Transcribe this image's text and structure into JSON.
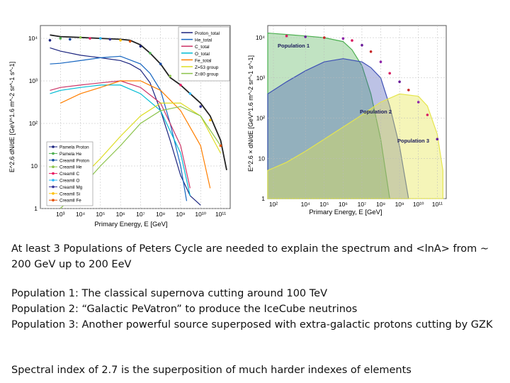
{
  "chart_data": [
    {
      "type": "line",
      "xlabel": "Primary Energy, E [GeV]",
      "ylabel": "E^2.6 dN/dE [GeV^1.6 m^-2 sr^-1 s^-1]",
      "xscale": "log",
      "yscale": "log",
      "xlim": [
        100,
        300000000000
      ],
      "ylim": [
        1,
        20000
      ],
      "x_ticks": [
        "10³",
        "10⁴",
        "10⁵",
        "10⁶",
        "10⁷",
        "10⁸",
        "10⁹",
        "10¹⁰",
        "10¹¹"
      ],
      "y_ticks": [
        "1",
        "10",
        "10²",
        "10³",
        "10⁴"
      ],
      "legend_models_position": "top-right",
      "legend_data_position": "bottom-left",
      "series": [
        {
          "name": "Proton_total",
          "color": "#1a237e",
          "x": [
            300,
            1000,
            10000,
            100000,
            1000000,
            3000000,
            10000000,
            30000000,
            100000000,
            300000000,
            1000000000,
            3000000000,
            10000000000
          ],
          "y": [
            6000,
            5000,
            4000,
            3500,
            3000,
            2500,
            1800,
            900,
            200,
            40,
            6,
            2,
            1.2
          ]
        },
        {
          "name": "He_total",
          "color": "#1565c0",
          "x": [
            300,
            1000,
            10000,
            100000,
            1000000,
            10000000,
            30000000,
            100000000,
            300000000,
            1000000000,
            2000000000
          ],
          "y": [
            2500,
            2600,
            3000,
            3500,
            3800,
            2500,
            1500,
            600,
            100,
            10,
            1.5
          ]
        },
        {
          "name": "C_total",
          "color": "#cc3366",
          "x": [
            300,
            1000,
            10000,
            100000,
            1000000,
            10000000,
            100000000,
            1000000000,
            3000000000
          ],
          "y": [
            600,
            700,
            800,
            900,
            1000,
            700,
            300,
            30,
            3
          ]
        },
        {
          "name": "O_total",
          "color": "#00bcd4",
          "x": [
            300,
            1000,
            10000,
            100000,
            1000000,
            10000000,
            100000000,
            1000000000,
            3000000000
          ],
          "y": [
            500,
            600,
            700,
            800,
            800,
            500,
            200,
            20,
            2
          ]
        },
        {
          "name": "Fe_total",
          "color": "#ff7f00",
          "x": [
            1000,
            10000,
            100000,
            1000000,
            10000000,
            100000000,
            1000000000,
            10000000000,
            30000000000
          ],
          "y": [
            300,
            500,
            700,
            1000,
            1000,
            600,
            200,
            30,
            3
          ]
        },
        {
          "name": "Z=53 group",
          "color": "#dddd22",
          "x": [
            1000,
            10000,
            100000,
            1000000,
            10000000,
            100000000,
            1000000000,
            10000000000,
            100000000000
          ],
          "y": [
            1.5,
            5,
            15,
            50,
            150,
            300,
            300,
            150,
            20
          ]
        },
        {
          "name": "Z=80 group",
          "color": "#8bc34a",
          "x": [
            1000,
            10000,
            100000,
            1000000,
            10000000,
            100000000,
            1000000000,
            10000000000,
            100000000000
          ],
          "y": [
            1,
            3,
            10,
            30,
            100,
            200,
            250,
            150,
            30
          ]
        },
        {
          "name": "Total",
          "color": "#222222",
          "x": [
            300,
            1000,
            10000,
            100000,
            1000000,
            3000000,
            10000000,
            30000000,
            100000000,
            300000000,
            1000000000,
            3000000000,
            10000000000,
            30000000000,
            100000000000,
            200000000000
          ],
          "y": [
            12000,
            11000,
            10500,
            10000,
            9500,
            9000,
            7000,
            4500,
            2500,
            1200,
            800,
            500,
            300,
            150,
            40,
            8
          ]
        }
      ],
      "data_legend": [
        {
          "name": "Pamela Proton",
          "color": "#1a237e"
        },
        {
          "name": "Pamela He",
          "color": "#4caf50"
        },
        {
          "name": "Creamll Proton",
          "color": "#0d47a1"
        },
        {
          "name": "Creamll He",
          "color": "#8bc34a"
        },
        {
          "name": "Creamll C",
          "color": "#e91e63"
        },
        {
          "name": "Creamll O",
          "color": "#29b6f6"
        },
        {
          "name": "Creamll Mg",
          "color": "#333399"
        },
        {
          "name": "Creamll Si",
          "color": "#ffc107"
        },
        {
          "name": "Creamll Fe",
          "color": "#e65100"
        }
      ],
      "data_points": [
        {
          "x": 300,
          "y": 9000
        },
        {
          "x": 1000,
          "y": 10000
        },
        {
          "x": 3000,
          "y": 9500
        },
        {
          "x": 10000,
          "y": 10500
        },
        {
          "x": 30000,
          "y": 10000
        },
        {
          "x": 100000,
          "y": 10000
        },
        {
          "x": 300000,
          "y": 9500
        },
        {
          "x": 1000000,
          "y": 9000
        },
        {
          "x": 3000000,
          "y": 8500
        },
        {
          "x": 10000000,
          "y": 6500
        },
        {
          "x": 30000000,
          "y": 4500
        },
        {
          "x": 100000000,
          "y": 2500
        },
        {
          "x": 300000000,
          "y": 1300
        },
        {
          "x": 1000000000,
          "y": 800
        },
        {
          "x": 3000000000,
          "y": 500
        },
        {
          "x": 10000000000,
          "y": 250
        },
        {
          "x": 30000000000,
          "y": 120
        },
        {
          "x": 100000000000,
          "y": 30
        }
      ]
    },
    {
      "type": "area",
      "xlabel": "Primary Energy, E [GeV]",
      "ylabel": "E^2.6 × dN/dE [GeV^1.6 m^-2 sr^-1 s^-1]",
      "xscale": "log",
      "yscale": "log",
      "xlim": [
        100,
        300000000000
      ],
      "ylim": [
        1,
        20000
      ],
      "x_ticks": [
        "10²",
        "10⁴",
        "10⁵",
        "10⁶",
        "10⁷",
        "10⁸",
        "10⁹",
        "10¹⁰",
        "10¹¹"
      ],
      "y_ticks": [
        "1",
        "10",
        "10²",
        "10³",
        "10⁴"
      ],
      "series": [
        {
          "name": "Population 1",
          "color": "#4caf50",
          "x": [
            100,
            1000,
            10000,
            100000,
            1000000,
            3000000,
            10000000,
            30000000,
            100000000,
            300000000
          ],
          "y": [
            13000,
            12000,
            11000,
            10000,
            8000,
            5000,
            2000,
            400,
            30,
            1
          ]
        },
        {
          "name": "Population 2",
          "color": "#3f51b5",
          "x": [
            100,
            1000,
            10000,
            100000,
            1000000,
            10000000,
            30000000,
            100000000,
            300000000,
            1000000000,
            3000000000
          ],
          "y": [
            400,
            800,
            1500,
            2500,
            3000,
            2500,
            1800,
            1000,
            200,
            20,
            1
          ]
        },
        {
          "name": "Population 3",
          "color": "#e6e64d",
          "x": [
            100,
            1000,
            10000,
            100000,
            1000000,
            10000000,
            100000000,
            1000000000,
            10000000000,
            30000000000,
            100000000000,
            200000000000
          ],
          "y": [
            5,
            8,
            15,
            30,
            60,
            120,
            250,
            400,
            350,
            200,
            40,
            5
          ]
        }
      ],
      "data_points": [
        {
          "x": 1000,
          "y": 11000
        },
        {
          "x": 10000,
          "y": 10500
        },
        {
          "x": 100000,
          "y": 10000
        },
        {
          "x": 1000000,
          "y": 9500
        },
        {
          "x": 3000000,
          "y": 8500
        },
        {
          "x": 10000000,
          "y": 6500
        },
        {
          "x": 30000000,
          "y": 4500
        },
        {
          "x": 100000000,
          "y": 2500
        },
        {
          "x": 300000000,
          "y": 1300
        },
        {
          "x": 1000000000,
          "y": 800
        },
        {
          "x": 3000000000,
          "y": 500
        },
        {
          "x": 10000000000,
          "y": 250
        },
        {
          "x": 30000000000,
          "y": 120
        },
        {
          "x": 100000000000,
          "y": 30
        }
      ]
    }
  ],
  "captions": {
    "line1": "At least 3 Populations of Peters Cycle are needed to explain the spectrum and <lnA> from ~ 200 GeV up to 200 EeV",
    "line2a": "Population 1: The classical supernova cutting around 100 TeV",
    "line2b": "Population 2: “Galactic PeVatron” to produce the IceCube neutrinos",
    "line2c": "Population 3: Another powerful source superposed with extra-galactic protons cutting by GZK",
    "line3": "Spectral index of 2.7 is the superposition of much harder indexes of elements"
  }
}
